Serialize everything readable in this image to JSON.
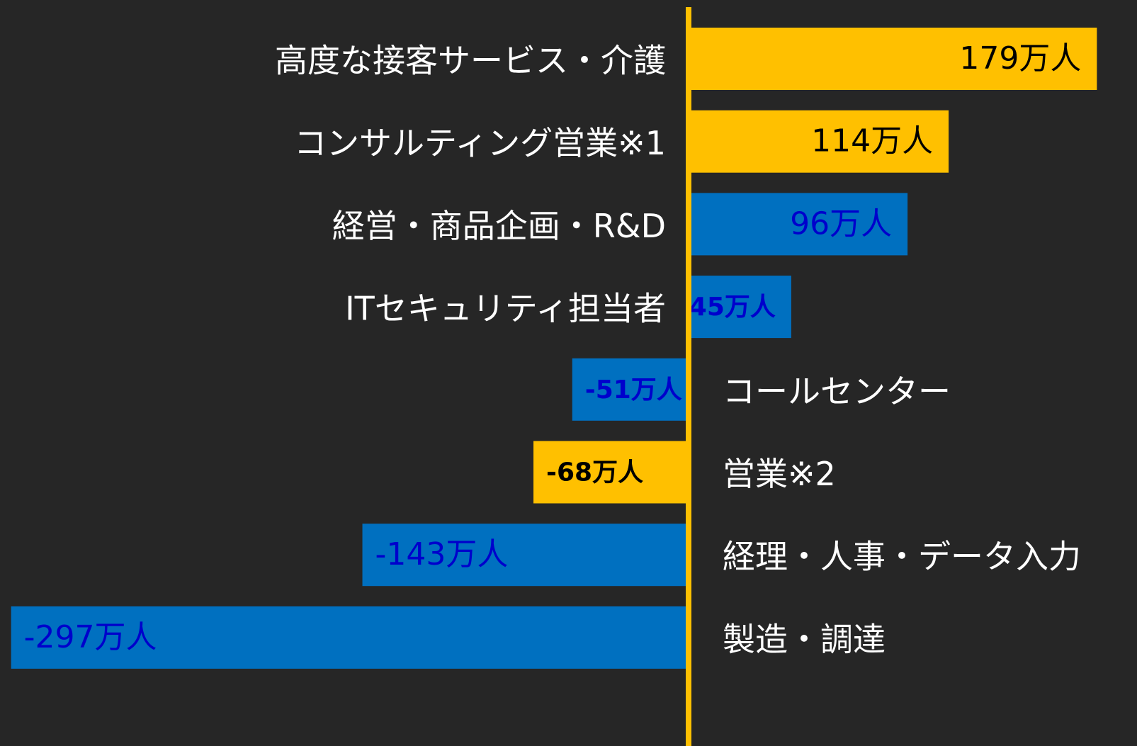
{
  "chart_data": {
    "type": "bar",
    "categories": [
      "高度な接客サービス・介護",
      "コンサルティング営業※1",
      "経営・商品企画・R&D",
      "ITセキュリティ担当者",
      "コールセンター",
      "営業※2",
      "経理・人事・データ入力",
      "製造・調達"
    ],
    "values": [
      179,
      114,
      96,
      45,
      -51,
      -68,
      -143,
      -297
    ],
    "value_labels": [
      "179万人",
      "114万人",
      "96万人",
      "45万人",
      "-51万人",
      "-68万人",
      "-143万人",
      "-297万人"
    ],
    "colors": [
      "#FFC000",
      "#FFC000",
      "#0070C0",
      "#0070C0",
      "#0070C0",
      "#FFC000",
      "#0070C0",
      "#0070C0"
    ],
    "label_colors": [
      "#000000",
      "#000000",
      "#0000CC",
      "#0000CC",
      "#0000CC",
      "#000000",
      "#0000CC",
      "#0000CC"
    ]
  }
}
